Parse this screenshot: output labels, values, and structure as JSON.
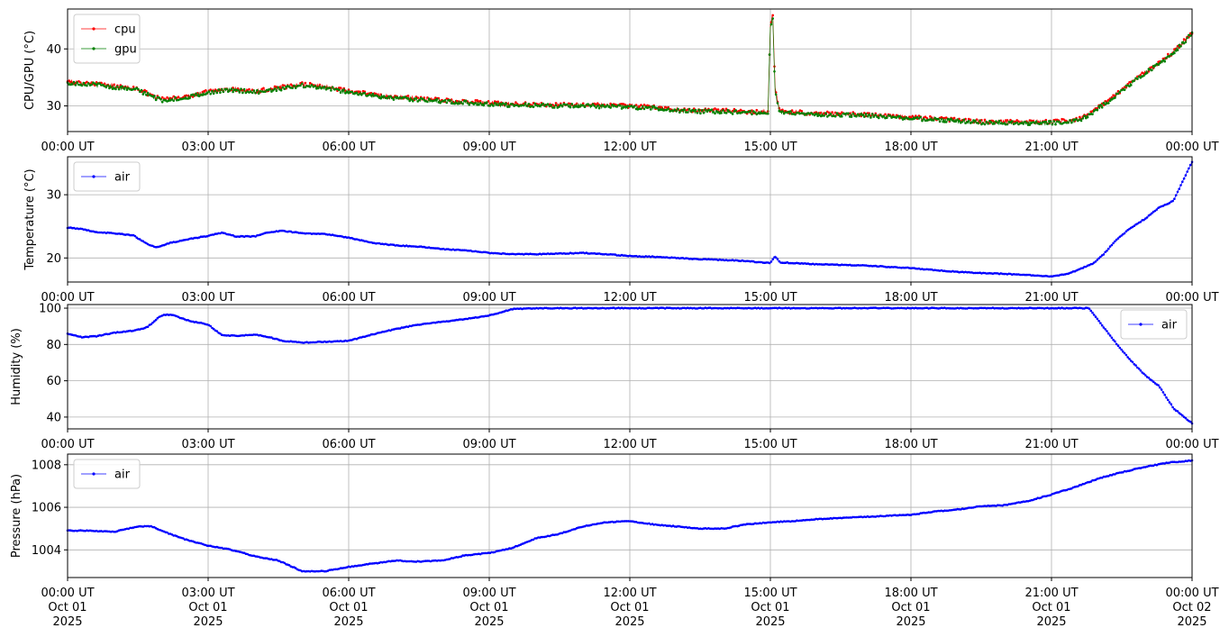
{
  "chart_data": [
    {
      "type": "line",
      "ylabel": "CPU/GPU (°C)",
      "xlim": [
        "2025-10-01 00:00",
        "2025-10-02 00:00"
      ],
      "ylim": [
        25.5,
        47
      ],
      "yticks": [
        30,
        40
      ],
      "x_tick_labels": [
        "00:00 UT",
        "03:00 UT",
        "06:00 UT",
        "09:00 UT",
        "12:00 UT",
        "15:00 UT",
        "18:00 UT",
        "21:00 UT",
        "00:00 UT"
      ],
      "grid": true,
      "legend": "top-left",
      "series": [
        {
          "name": "cpu",
          "color": "#ff0000",
          "x_hours": [
            0,
            0.5,
            1,
            1.5,
            1.8,
            2,
            2.5,
            3,
            3.5,
            4,
            4.5,
            5,
            5.5,
            6,
            6.5,
            7,
            7.5,
            8,
            8.5,
            9,
            9.5,
            10,
            10.5,
            11,
            11.5,
            12,
            12.5,
            13,
            13.5,
            14,
            14.5,
            14.95,
            15.0,
            15.05,
            15.1,
            15.2,
            15.5,
            16,
            16.5,
            17,
            17.5,
            18,
            18.5,
            19,
            19.5,
            20,
            20.5,
            21,
            21.5,
            21.8,
            22,
            22.3,
            22.6,
            23,
            23.3,
            23.6,
            23.9,
            24
          ],
          "values": [
            34.2,
            34.0,
            33.5,
            33.0,
            31.8,
            31.2,
            31.6,
            32.5,
            33.0,
            32.6,
            33.2,
            33.8,
            33.4,
            32.6,
            32.0,
            31.6,
            31.3,
            31.0,
            30.8,
            30.5,
            30.3,
            30.3,
            30.2,
            30.2,
            30.1,
            30.0,
            29.8,
            29.4,
            29.2,
            29.2,
            29.0,
            29.0,
            44.5,
            46.0,
            33.0,
            29.0,
            28.9,
            28.7,
            28.6,
            28.5,
            28.3,
            28.0,
            27.8,
            27.5,
            27.3,
            27.2,
            27.2,
            27.2,
            27.5,
            28.5,
            29.8,
            31.5,
            33.5,
            36.0,
            37.5,
            39.5,
            42.0,
            43.0
          ]
        },
        {
          "name": "gpu",
          "color": "#008000",
          "x_hours": [
            0,
            0.5,
            1,
            1.5,
            1.8,
            2,
            2.5,
            3,
            3.5,
            4,
            4.5,
            5,
            5.5,
            6,
            6.5,
            7,
            7.5,
            8,
            8.5,
            9,
            9.5,
            10,
            10.5,
            11,
            11.5,
            12,
            12.5,
            13,
            13.5,
            14,
            14.5,
            14.95,
            15.0,
            15.05,
            15.1,
            15.2,
            15.5,
            16,
            16.5,
            17,
            17.5,
            18,
            18.5,
            19,
            19.5,
            20,
            20.5,
            21,
            21.5,
            21.8,
            22,
            22.3,
            22.6,
            23,
            23.3,
            23.6,
            23.9,
            24
          ],
          "values": [
            34.0,
            33.8,
            33.3,
            32.8,
            31.6,
            31.0,
            31.4,
            32.3,
            32.8,
            32.4,
            33.0,
            33.6,
            33.2,
            32.4,
            31.8,
            31.4,
            31.1,
            30.8,
            30.6,
            30.3,
            30.1,
            30.1,
            30.0,
            30.0,
            29.9,
            29.8,
            29.6,
            29.2,
            29.0,
            29.0,
            28.8,
            28.8,
            44.0,
            45.5,
            32.5,
            28.8,
            28.7,
            28.5,
            28.4,
            28.3,
            28.1,
            27.8,
            27.6,
            27.3,
            27.1,
            27.0,
            27.0,
            27.0,
            27.3,
            28.3,
            29.6,
            31.3,
            33.3,
            35.8,
            37.3,
            39.3,
            41.8,
            42.8
          ]
        }
      ]
    },
    {
      "type": "line",
      "ylabel": "Temperature (°C)",
      "xlim": [
        "2025-10-01 00:00",
        "2025-10-02 00:00"
      ],
      "ylim": [
        16.2,
        36
      ],
      "yticks": [
        20,
        30
      ],
      "x_tick_labels": [
        "00:00 UT",
        "03:00 UT",
        "06:00 UT",
        "09:00 UT",
        "12:00 UT",
        "15:00 UT",
        "18:00 UT",
        "21:00 UT",
        "00:00 UT"
      ],
      "grid": true,
      "legend": "top-left",
      "series": [
        {
          "name": "air",
          "color": "#0000ff",
          "x_hours": [
            0,
            0.3,
            0.6,
            1,
            1.4,
            1.7,
            1.9,
            2.2,
            2.6,
            3,
            3.3,
            3.6,
            4,
            4.3,
            4.6,
            5,
            5.5,
            6,
            6.5,
            7,
            7.5,
            8,
            8.5,
            9,
            9.5,
            10,
            10.5,
            11,
            11.5,
            12,
            12.5,
            13,
            13.5,
            14,
            14.5,
            15,
            15.1,
            15.2,
            15.5,
            16,
            16.5,
            17,
            17.5,
            18,
            18.5,
            19,
            19.5,
            20,
            20.5,
            21,
            21.3,
            21.6,
            21.9,
            22.1,
            22.4,
            22.7,
            23,
            23.3,
            23.6,
            24
          ],
          "values": [
            24.8,
            24.6,
            24.1,
            23.9,
            23.6,
            22.2,
            21.7,
            22.4,
            23.0,
            23.5,
            24.0,
            23.4,
            23.4,
            24.1,
            24.3,
            23.9,
            23.8,
            23.2,
            22.4,
            22.0,
            21.8,
            21.4,
            21.2,
            20.8,
            20.6,
            20.6,
            20.7,
            20.8,
            20.6,
            20.3,
            20.2,
            20.0,
            19.8,
            19.7,
            19.5,
            19.2,
            20.3,
            19.3,
            19.2,
            19.0,
            18.9,
            18.8,
            18.6,
            18.4,
            18.1,
            17.8,
            17.6,
            17.5,
            17.3,
            17.1,
            17.4,
            18.2,
            19.2,
            20.5,
            23.0,
            24.8,
            26.2,
            28.0,
            29.0,
            35.2
          ]
        }
      ]
    },
    {
      "type": "line",
      "ylabel": "Humidity (%)",
      "xlim": [
        "2025-10-01 00:00",
        "2025-10-02 00:00"
      ],
      "ylim": [
        33.5,
        102
      ],
      "yticks": [
        40,
        60,
        80,
        100
      ],
      "x_tick_labels": [
        "00:00 UT",
        "03:00 UT",
        "06:00 UT",
        "09:00 UT",
        "12:00 UT",
        "15:00 UT",
        "18:00 UT",
        "21:00 UT",
        "00:00 UT"
      ],
      "grid": true,
      "legend": "top-right",
      "series": [
        {
          "name": "air",
          "color": "#0000ff",
          "x_hours": [
            0,
            0.3,
            0.6,
            1,
            1.4,
            1.7,
            2,
            2.2,
            2.6,
            3,
            3.3,
            3.6,
            4,
            4.3,
            4.6,
            5,
            5.5,
            6,
            6.5,
            7,
            7.5,
            8,
            8.5,
            9,
            9.5,
            10,
            11,
            12,
            13,
            14,
            15,
            16,
            17,
            18,
            19,
            20,
            21,
            21.8,
            22.1,
            22.4,
            22.7,
            23,
            23.3,
            23.6,
            24
          ],
          "values": [
            86.0,
            84.0,
            84.5,
            86.5,
            87.5,
            89.5,
            96.0,
            96.5,
            93.0,
            91.0,
            85.0,
            84.8,
            85.5,
            84.0,
            82.0,
            81.0,
            81.5,
            82.0,
            85.5,
            88.5,
            91.0,
            92.5,
            94.0,
            96.0,
            99.5,
            100,
            100,
            100,
            100,
            100,
            100,
            100,
            100,
            100,
            100,
            100,
            100,
            100,
            90.0,
            80.0,
            71.0,
            63.0,
            57.0,
            45.0,
            36.5
          ]
        }
      ]
    },
    {
      "type": "line",
      "ylabel": "Pressure (hPa)",
      "xlim": [
        "2025-10-01 00:00",
        "2025-10-02 00:00"
      ],
      "ylim": [
        1002.7,
        1008.5
      ],
      "yticks": [
        1004,
        1006,
        1008
      ],
      "x_tick_labels": [
        "00:00 UT\nOct 01\n2025",
        "03:00 UT\nOct 01\n2025",
        "06:00 UT\nOct 01\n2025",
        "09:00 UT\nOct 01\n2025",
        "12:00 UT\nOct 01\n2025",
        "15:00 UT\nOct 01\n2025",
        "18:00 UT\nOct 01\n2025",
        "21:00 UT\nOct 01\n2025",
        "00:00 UT\nOct 02\n2025"
      ],
      "grid": true,
      "legend": "top-left",
      "series": [
        {
          "name": "air",
          "color": "#0000ff",
          "x_hours": [
            0,
            0.5,
            1,
            1.5,
            1.8,
            2,
            2.5,
            3,
            3.5,
            4,
            4.5,
            5,
            5.5,
            6,
            6.5,
            7,
            7.5,
            8,
            8.5,
            9,
            9.5,
            10,
            10.5,
            11,
            11.5,
            12,
            12.5,
            13,
            13.5,
            14,
            14.5,
            15,
            15.5,
            16,
            16.5,
            17,
            17.5,
            18,
            18.5,
            19,
            19.5,
            20,
            20.5,
            21,
            21.5,
            22,
            22.5,
            23,
            23.5,
            24
          ],
          "values": [
            1004.9,
            1004.9,
            1004.85,
            1005.1,
            1005.1,
            1004.9,
            1004.5,
            1004.2,
            1004.0,
            1003.7,
            1003.5,
            1003.0,
            1003.0,
            1003.2,
            1003.35,
            1003.5,
            1003.45,
            1003.5,
            1003.75,
            1003.85,
            1004.1,
            1004.55,
            1004.75,
            1005.1,
            1005.3,
            1005.35,
            1005.2,
            1005.1,
            1005.0,
            1005.0,
            1005.2,
            1005.3,
            1005.35,
            1005.45,
            1005.5,
            1005.55,
            1005.6,
            1005.65,
            1005.8,
            1005.9,
            1006.05,
            1006.1,
            1006.3,
            1006.6,
            1006.95,
            1007.35,
            1007.65,
            1007.9,
            1008.1,
            1008.2
          ]
        }
      ]
    }
  ]
}
